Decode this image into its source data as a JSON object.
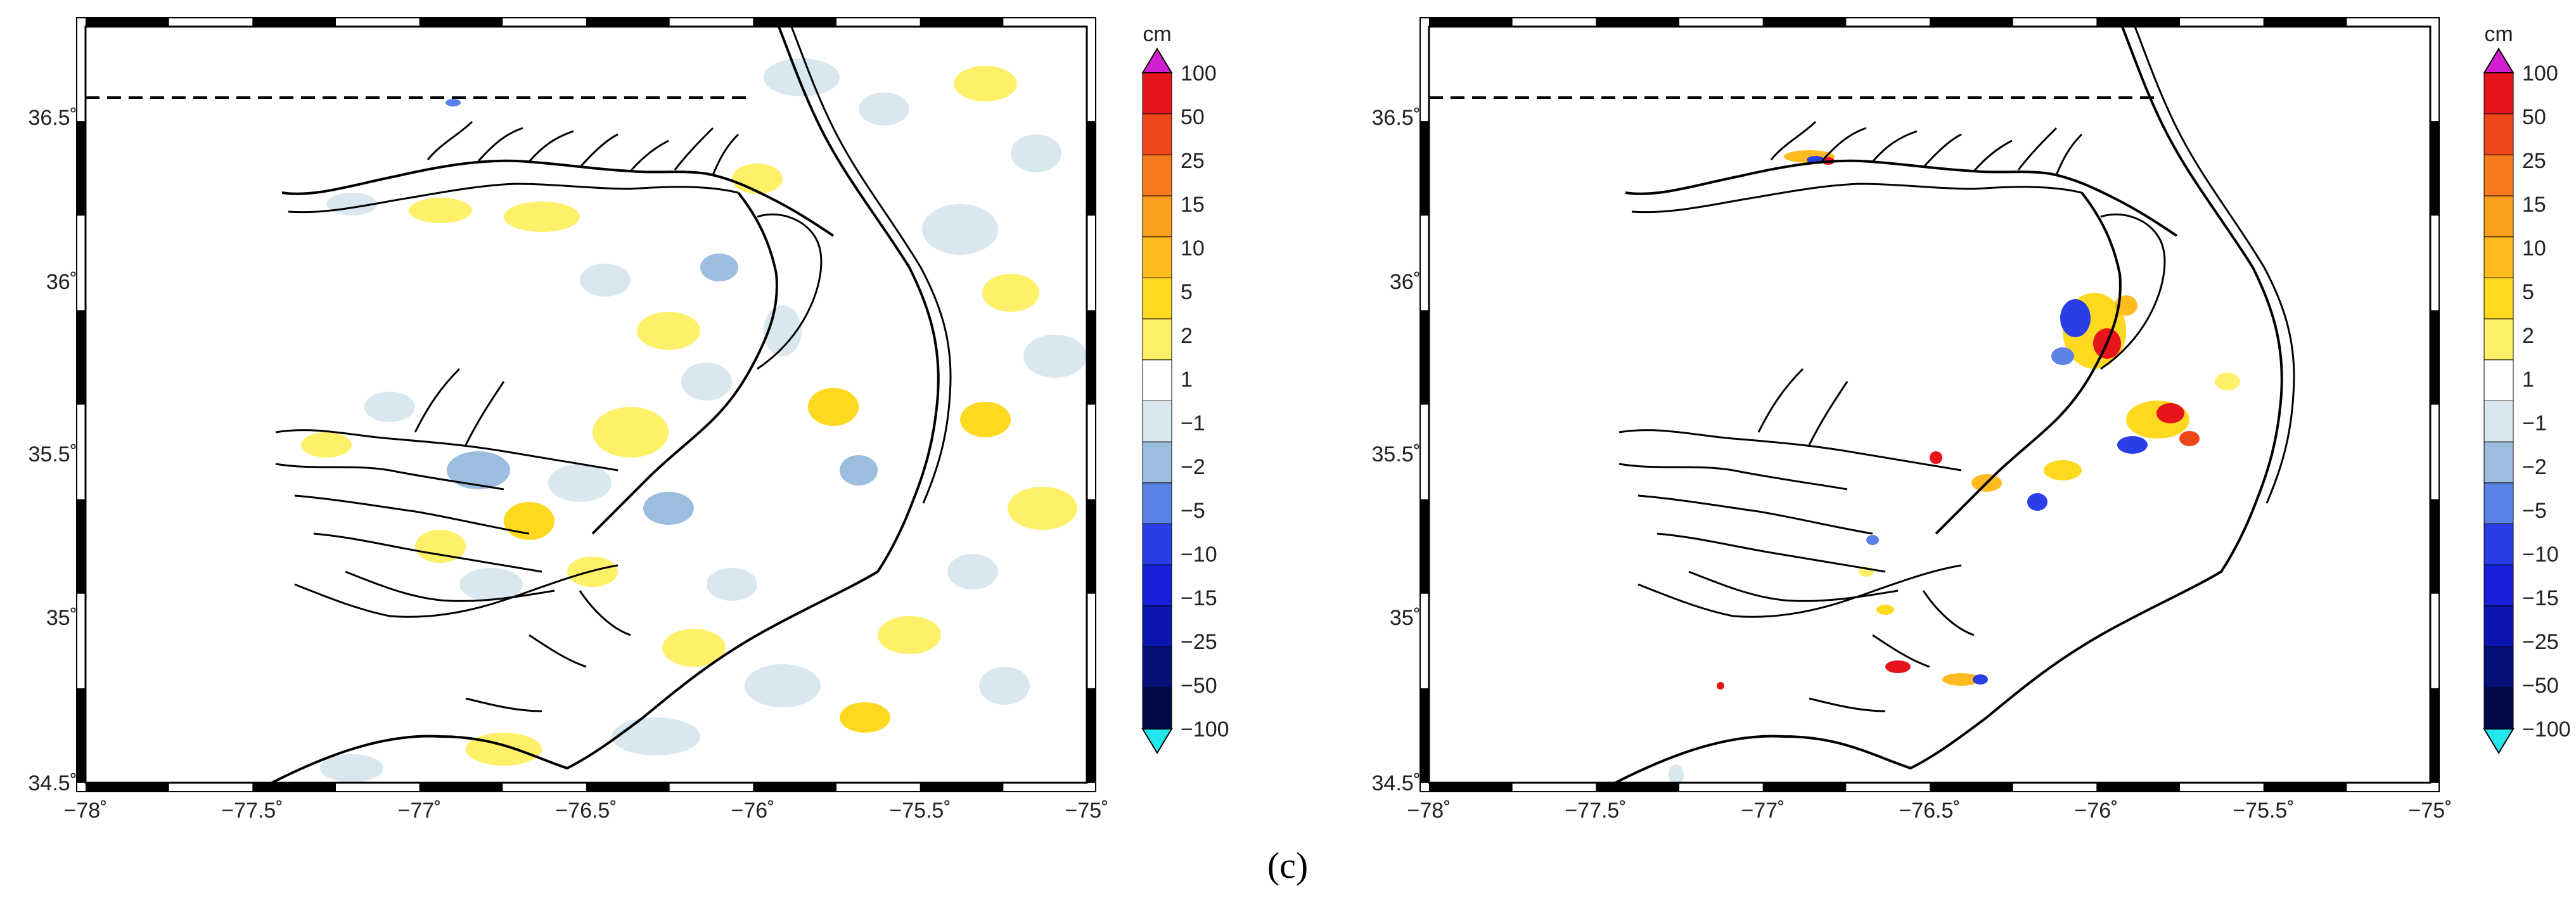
{
  "figure": {
    "caption": "(c)"
  },
  "colorbar": {
    "unit": "cm",
    "labels": [
      "100",
      "50",
      "25",
      "15",
      "10",
      "5",
      "2",
      "1",
      "−1",
      "−2",
      "−5",
      "−10",
      "−15",
      "−25",
      "−50",
      "−100"
    ],
    "colors": [
      "#e8141c",
      "#f0461c",
      "#f77a1e",
      "#fb9f1e",
      "#ffbb20",
      "#ffd820",
      "#fff06a",
      "#ffffff",
      "#d8e7f0",
      "#9bbde0",
      "#5a82e6",
      "#2a3ee8",
      "#1520d8",
      "#0b16b0",
      "#061078",
      "#030847"
    ],
    "over_color": "#d21fd2",
    "under_color": "#22e8ee"
  },
  "axes": {
    "x_ticks": [
      "−78˚",
      "−77.5˚",
      "−77˚",
      "−76.5˚",
      "−76˚",
      "−75.5˚",
      "−75˚"
    ],
    "y_ticks": [
      "36.5˚",
      "36˚",
      "35.5˚",
      "35˚",
      "34.5˚"
    ]
  },
  "maps": [
    {
      "name": "left",
      "lon_range": [
        -78,
        -75
      ],
      "lat_range": [
        34.5,
        36.7
      ],
      "reference_line_lat": 36.55
    },
    {
      "name": "right",
      "lon_range": [
        -78,
        -75
      ],
      "lat_range": [
        34.5,
        36.7
      ],
      "reference_line_lat": 36.55
    }
  ]
}
